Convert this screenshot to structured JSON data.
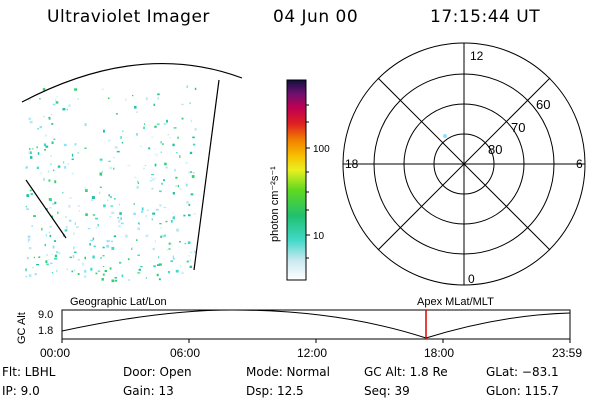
{
  "header": {
    "title": "Ultraviolet Imager",
    "date": "04 Jun 00",
    "time": "17:15:44 UT"
  },
  "colorbar": {
    "unit_label": "photon cm⁻²s⁻¹",
    "ticks": [
      "100",
      "10"
    ]
  },
  "polar_plot": {
    "mlt_labels": [
      "12",
      "18",
      "6",
      "0"
    ],
    "lat_labels": [
      "60",
      "70",
      "80"
    ]
  },
  "altitude_panel": {
    "ylabel": "GC Alt",
    "yticks": [
      "9.0",
      "1.8"
    ],
    "left_caption": "Geographic Lat/Lon",
    "right_caption": "Apex MLat/MLT",
    "xticks": [
      "00:00",
      "06:00",
      "12:00",
      "18:00",
      "23:59"
    ],
    "marker_color": "#e00000"
  },
  "info": {
    "flt": "Flt: LBHL",
    "ip": "IP:  9.0",
    "door": "Door: Open",
    "gain": "Gain: 13",
    "mode": "Mode: Normal",
    "dsp": "Dsp:     12.5",
    "gcalt": "GC Alt: 1.8 Re",
    "seq": "Seq: 39",
    "glat": "GLat: −83.1",
    "glon": "GLon: 115.7"
  }
}
